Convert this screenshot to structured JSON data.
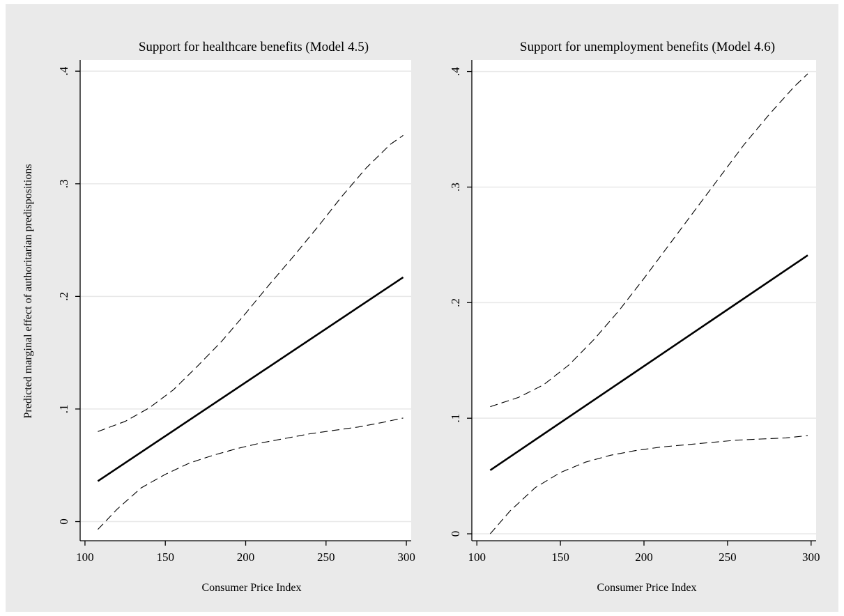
{
  "chart_data": [
    {
      "type": "line",
      "title": "Support for healthcare benefits (Model 4.5)",
      "xlabel": "Consumer Price Index",
      "ylabel": "Predicted marginal effect of authoritarian predispositions",
      "xlim": [
        97,
        303
      ],
      "ylim": [
        -0.017,
        0.41
      ],
      "xticks": [
        100,
        150,
        200,
        250,
        300
      ],
      "xtick_labels": [
        "100",
        "150",
        "200",
        "250",
        "300"
      ],
      "yticks": [
        0,
        0.1,
        0.2,
        0.3,
        0.4
      ],
      "ytick_labels": [
        "0",
        ".1",
        ".2",
        ".3",
        ".4"
      ],
      "grid": true,
      "series": [
        {
          "style": "solid",
          "x": [
            108,
            298
          ],
          "y": [
            0.036,
            0.217
          ]
        },
        {
          "style": "dashed",
          "x": [
            108,
            125,
            140,
            155,
            170,
            185,
            200,
            215,
            230,
            245,
            260,
            275,
            290,
            298
          ],
          "y": [
            0.08,
            0.089,
            0.101,
            0.117,
            0.138,
            0.16,
            0.185,
            0.211,
            0.236,
            0.262,
            0.289,
            0.314,
            0.335,
            0.343
          ]
        },
        {
          "style": "dashed",
          "x": [
            108,
            120,
            135,
            150,
            165,
            180,
            195,
            210,
            225,
            240,
            255,
            270,
            285,
            298
          ],
          "y": [
            -0.007,
            0.011,
            0.03,
            0.042,
            0.052,
            0.059,
            0.065,
            0.07,
            0.074,
            0.078,
            0.081,
            0.084,
            0.088,
            0.092
          ]
        }
      ]
    },
    {
      "type": "line",
      "title": "Support for unemployment benefits (Model 4.6)",
      "xlabel": "Consumer Price Index",
      "ylabel": "",
      "xlim": [
        97,
        303
      ],
      "ylim": [
        -0.006,
        0.41
      ],
      "xticks": [
        100,
        150,
        200,
        250,
        300
      ],
      "xtick_labels": [
        "100",
        "150",
        "200",
        "250",
        "300"
      ],
      "yticks": [
        0,
        0.1,
        0.2,
        0.3,
        0.4
      ],
      "ytick_labels": [
        "0",
        ".1",
        ".2",
        ".3",
        ".4"
      ],
      "grid": true,
      "series": [
        {
          "style": "solid",
          "x": [
            108,
            298
          ],
          "y": [
            0.055,
            0.241
          ]
        },
        {
          "style": "dashed",
          "x": [
            108,
            125,
            140,
            155,
            170,
            185,
            200,
            215,
            230,
            245,
            260,
            275,
            290,
            298
          ],
          "y": [
            0.11,
            0.118,
            0.129,
            0.146,
            0.168,
            0.193,
            0.221,
            0.25,
            0.279,
            0.308,
            0.337,
            0.363,
            0.387,
            0.398
          ]
        },
        {
          "style": "dashed",
          "x": [
            108,
            120,
            135,
            150,
            165,
            180,
            195,
            210,
            225,
            240,
            255,
            270,
            285,
            298
          ],
          "y": [
            0.0,
            0.02,
            0.04,
            0.053,
            0.062,
            0.068,
            0.072,
            0.075,
            0.077,
            0.079,
            0.081,
            0.082,
            0.083,
            0.085
          ]
        }
      ]
    }
  ]
}
